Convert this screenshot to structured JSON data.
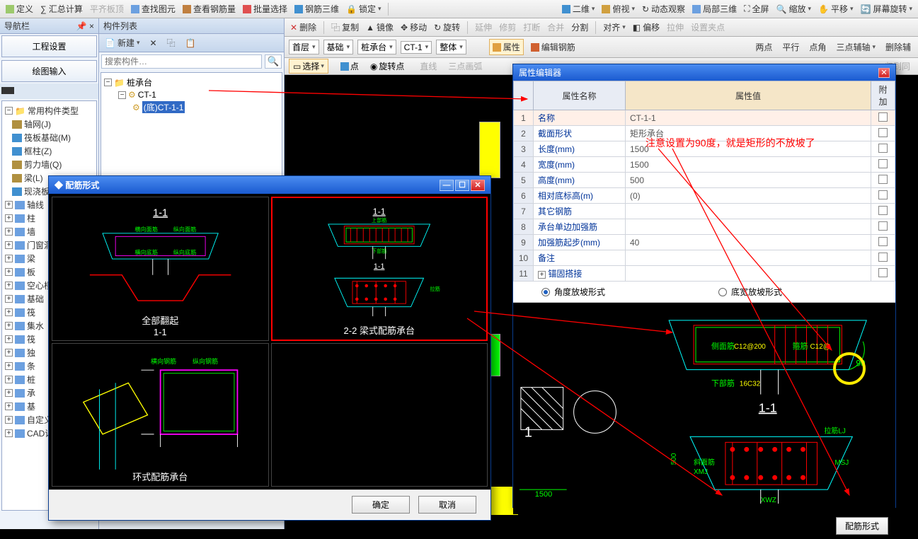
{
  "top_toolbar": {
    "items": [
      "定义",
      "∑ 汇总计算",
      "平齐板顶",
      "查找图元",
      "查看钢筋量",
      "批量选择",
      "钢筋三维",
      "锁定"
    ],
    "items2": [
      "二维",
      "俯视",
      "动态观察",
      "局部三维",
      "全屏",
      "缩放",
      "平移",
      "屏幕旋转"
    ]
  },
  "toolbar_edit": {
    "items": [
      "删除",
      "复制",
      "镜像",
      "移动",
      "旋转",
      "延伸",
      "修剪",
      "打断",
      "合并",
      "分割",
      "对齐",
      "偏移",
      "拉伸",
      "设置夹点"
    ]
  },
  "toolbar_ctx": {
    "floor": "首层",
    "category": "基础",
    "subcat": "桩承台",
    "item": "CT-1",
    "scope": "整体",
    "btn_attr": "属性",
    "btn_edit_rebar": "编辑钢筋"
  },
  "toolbar_ctx2": {
    "items": [
      "两点",
      "平行",
      "点角",
      "三点辅轴",
      "删除辅"
    ]
  },
  "toolbar_sel": {
    "sel": "选择",
    "items": [
      "点",
      "旋转点",
      "直线",
      "三点画弧"
    ],
    "right": "归到同"
  },
  "nav": {
    "title": "导航栏",
    "btn1": "工程设置",
    "btn2": "绘图输入",
    "group": "常用构件类型",
    "tree": [
      {
        "label": "轴网(J)",
        "icon": "#b09040"
      },
      {
        "label": "筏板基础(M)",
        "icon": "#4090d0"
      },
      {
        "label": "框柱(Z)",
        "icon": "#4090d0"
      },
      {
        "label": "剪力墙(Q)",
        "icon": "#b09040"
      },
      {
        "label": "梁(L)",
        "icon": "#b09040"
      },
      {
        "label": "现浇板(B)",
        "icon": "#4090d0"
      }
    ],
    "tree2": [
      "轴线",
      "柱",
      "墙",
      "门窗洞",
      "梁",
      "板",
      "空心楼",
      "基础",
      "筏",
      "集水",
      "筏",
      "独",
      "条",
      "桩",
      "承",
      "基",
      "自定义",
      "CAD识"
    ]
  },
  "comp": {
    "title": "构件列表",
    "new": "新建",
    "search_ph": "搜索构件…",
    "root": "桩承台",
    "child": "CT-1",
    "leaf": "(底)CT-1-1"
  },
  "dialog_rebar": {
    "title": "配筋形式",
    "cells": [
      {
        "title": "1-1",
        "sub": "全部翻起\n1-1"
      },
      {
        "title": "1-1",
        "sub": "2-2  梁式配筋承台"
      },
      {
        "title": "",
        "sub": "环式配筋承台"
      },
      {
        "title": "",
        "sub": ""
      }
    ],
    "ok": "确定",
    "cancel": "取消"
  },
  "dialog_prop": {
    "title": "属性编辑器",
    "col_name": "属性名称",
    "col_value": "属性值",
    "col_extra": "附加",
    "rows": [
      {
        "n": "1",
        "name": "名称",
        "value": "CT-1-1",
        "sel": true
      },
      {
        "n": "2",
        "name": "截面形状",
        "value": "矩形承台"
      },
      {
        "n": "3",
        "name": "长度(mm)",
        "value": "1500"
      },
      {
        "n": "4",
        "name": "宽度(mm)",
        "value": "1500"
      },
      {
        "n": "5",
        "name": "高度(mm)",
        "value": "500"
      },
      {
        "n": "6",
        "name": "相对底标高(m)",
        "value": "(0)"
      },
      {
        "n": "7",
        "name": "其它钢筋",
        "value": ""
      },
      {
        "n": "8",
        "name": "承台单边加强筋",
        "value": ""
      },
      {
        "n": "9",
        "name": "加强筋起步(mm)",
        "value": "40"
      },
      {
        "n": "10",
        "name": "备注",
        "value": ""
      },
      {
        "n": "11",
        "name": "锚固搭接",
        "value": "",
        "exp": true
      }
    ],
    "radio1": "角度放坡形式",
    "radio2": "底宽放坡形式",
    "foot_btn": "配筋形式"
  },
  "annotation": "注意设置为90度，就是矩形的不放坡了",
  "diagram_labels": {
    "side_rebar": "侧面筋",
    "bottom_rebar": "下部筋",
    "hoop": "箍筋",
    "tie": "拉筋",
    "sec11": "1-1",
    "sec22": "2-2",
    "val90": "90",
    "dim1500": "1500",
    "dim500": "500",
    "xmj": "XMJ",
    "msj": "MSJ",
    "xwz": "XWZ",
    "lj": "LJ"
  },
  "colors": {
    "accent": "#316ac5",
    "bg_panel": "#eef3fa",
    "line_red": "#ff0000",
    "line_cyan": "#00ffff",
    "line_green": "#00ff00",
    "line_magenta": "#ff00ff",
    "line_yellow": "#ffff00",
    "line_white": "#ffffff",
    "highlight": "#ffeb00"
  }
}
